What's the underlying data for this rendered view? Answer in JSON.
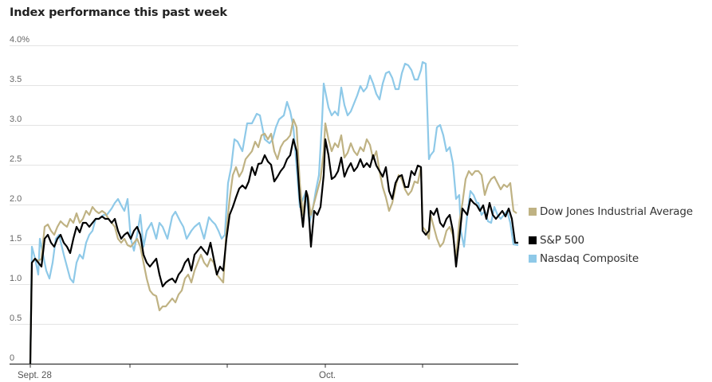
{
  "title": "Index performance this past week",
  "colors": {
    "dow": "#bfb283",
    "sp": "#000000",
    "nasdaq": "#8ec9e8",
    "grid": "#e3e3e3",
    "axis": "#333333"
  },
  "legend": [
    {
      "label": "Dow Jones Industrial Average",
      "color": "#bfb283"
    },
    {
      "label": "S&P 500",
      "color": "#000000"
    },
    {
      "label": "Nasdaq Composite",
      "color": "#8ec9e8"
    }
  ],
  "chart_data": {
    "type": "line",
    "title": "Index performance this past week",
    "xlabel": "",
    "ylabel": "",
    "ylim": [
      0,
      4.0
    ],
    "yticks": [
      "0",
      "0.5",
      "1.0",
      "1.5",
      "2.0",
      "2.5",
      "3.0",
      "3.5",
      "4.0%"
    ],
    "xticks": [
      {
        "pos": 0,
        "label": "Sept. 28"
      },
      {
        "pos": 125,
        "label": ""
      },
      {
        "pos": 247,
        "label": ""
      },
      {
        "pos": 370,
        "label": "Oct."
      },
      {
        "pos": 492,
        "label": ""
      }
    ],
    "x_range": [
      0,
      612
    ],
    "grid": true,
    "legend_position": "right",
    "series": [
      {
        "name": "Dow Jones Industrial Average",
        "x": [
          0,
          2,
          6,
          10,
          14,
          18,
          22,
          26,
          30,
          34,
          38,
          42,
          46,
          50,
          54,
          58,
          62,
          66,
          70,
          74,
          78,
          82,
          86,
          90,
          94,
          98,
          102,
          106,
          110,
          114,
          118,
          122,
          126,
          130,
          134,
          138,
          142,
          146,
          150,
          154,
          158,
          162,
          166,
          170,
          174,
          178,
          182,
          186,
          190,
          194,
          198,
          202,
          206,
          210,
          214,
          218,
          222,
          226,
          230,
          234,
          238,
          242,
          246,
          250,
          254,
          258,
          262,
          266,
          270,
          274,
          278,
          282,
          286,
          290,
          294,
          298,
          302,
          306,
          310,
          314,
          318,
          322,
          326,
          330,
          334,
          338,
          342,
          346,
          348,
          352,
          356,
          360,
          364,
          368,
          370,
          374,
          378,
          382,
          386,
          390,
          394,
          398,
          402,
          406,
          410,
          414,
          418,
          422,
          426,
          430,
          434,
          438,
          442,
          446,
          450,
          454,
          458,
          462,
          466,
          470,
          474,
          478,
          482,
          486,
          490,
          492,
          496,
          500,
          502,
          506,
          510,
          514,
          518,
          522,
          526,
          530,
          534,
          538,
          542,
          546,
          550,
          554,
          558,
          562,
          566,
          570,
          574,
          578,
          582,
          586,
          590,
          594,
          598,
          602,
          606,
          610
        ],
        "values": [
          0,
          1.27,
          1.32,
          1.29,
          1.32,
          1.72,
          1.75,
          1.67,
          1.62,
          1.72,
          1.79,
          1.75,
          1.72,
          1.82,
          1.77,
          1.89,
          1.77,
          1.82,
          1.92,
          1.87,
          1.97,
          1.92,
          1.89,
          1.92,
          1.89,
          1.82,
          1.77,
          1.72,
          1.57,
          1.52,
          1.57,
          1.49,
          1.47,
          1.52,
          1.57,
          1.47,
          1.27,
          1.07,
          0.92,
          0.87,
          0.85,
          0.67,
          0.72,
          0.72,
          0.77,
          0.82,
          0.77,
          0.87,
          0.92,
          1.07,
          1.12,
          1.02,
          1.17,
          1.27,
          1.37,
          1.27,
          1.22,
          1.32,
          1.27,
          1.12,
          1.07,
          1.02,
          1.67,
          2.07,
          2.37,
          2.47,
          2.35,
          2.42,
          2.57,
          2.62,
          2.67,
          2.79,
          2.72,
          2.87,
          2.89,
          2.82,
          2.89,
          2.67,
          2.57,
          2.72,
          2.79,
          2.82,
          2.87,
          3.07,
          2.97,
          2.27,
          1.87,
          2.17,
          2.12,
          1.87,
          2.02,
          2.17,
          2.32,
          2.67,
          3.02,
          2.82,
          2.67,
          2.77,
          2.72,
          2.87,
          2.59,
          2.65,
          2.77,
          2.67,
          2.62,
          2.72,
          2.67,
          2.82,
          2.75,
          2.57,
          2.67,
          2.42,
          2.22,
          2.09,
          1.92,
          2.02,
          2.22,
          2.37,
          2.32,
          2.19,
          2.12,
          2.17,
          2.29,
          2.27,
          2.47,
          1.72,
          1.67,
          1.57,
          1.87,
          1.72,
          1.57,
          1.47,
          1.52,
          1.67,
          1.72,
          1.62,
          1.32,
          1.77,
          2.02,
          2.32,
          2.42,
          2.37,
          2.42,
          2.42,
          2.37,
          2.12,
          2.25,
          2.32,
          2.35,
          2.27,
          2.19,
          2.25,
          2.22,
          2.27,
          1.92,
          1.89
        ],
        "color": "#bfb283"
      },
      {
        "name": "S&P 500",
        "x": [
          0,
          2,
          6,
          10,
          14,
          18,
          22,
          26,
          30,
          34,
          38,
          42,
          46,
          50,
          54,
          58,
          62,
          66,
          70,
          74,
          78,
          82,
          86,
          90,
          94,
          98,
          102,
          106,
          110,
          114,
          118,
          122,
          126,
          130,
          134,
          138,
          142,
          146,
          150,
          154,
          158,
          162,
          166,
          170,
          174,
          178,
          182,
          186,
          190,
          194,
          198,
          202,
          206,
          210,
          214,
          218,
          222,
          226,
          230,
          232,
          234,
          238,
          242,
          246,
          250,
          254,
          258,
          262,
          266,
          270,
          274,
          278,
          282,
          286,
          290,
          294,
          298,
          302,
          306,
          310,
          314,
          318,
          322,
          326,
          330,
          334,
          338,
          342,
          346,
          348,
          352,
          356,
          360,
          364,
          368,
          370,
          374,
          378,
          382,
          386,
          390,
          394,
          398,
          402,
          406,
          410,
          414,
          418,
          422,
          426,
          430,
          434,
          438,
          442,
          446,
          450,
          454,
          458,
          462,
          466,
          470,
          474,
          478,
          482,
          486,
          490,
          492,
          496,
          500,
          502,
          506,
          510,
          514,
          518,
          522,
          526,
          530,
          534,
          538,
          542,
          548,
          552,
          556,
          560,
          564,
          568,
          572,
          576,
          580,
          584,
          588,
          592,
          596,
          600,
          604,
          608,
          612
        ],
        "values": [
          0,
          1.27,
          1.32,
          1.27,
          1.22,
          1.57,
          1.62,
          1.52,
          1.47,
          1.57,
          1.62,
          1.52,
          1.47,
          1.39,
          1.57,
          1.72,
          1.65,
          1.77,
          1.77,
          1.72,
          1.77,
          1.82,
          1.82,
          1.85,
          1.82,
          1.82,
          1.77,
          1.82,
          1.67,
          1.57,
          1.62,
          1.65,
          1.57,
          1.67,
          1.72,
          1.62,
          1.37,
          1.27,
          1.22,
          1.27,
          1.32,
          1.12,
          0.97,
          1.02,
          1.05,
          1.07,
          1.02,
          1.12,
          1.17,
          1.27,
          1.32,
          1.17,
          1.37,
          1.42,
          1.47,
          1.42,
          1.37,
          1.52,
          1.32,
          1.22,
          1.12,
          1.22,
          1.17,
          1.57,
          1.87,
          1.97,
          2.09,
          2.2,
          2.24,
          2.2,
          2.29,
          2.47,
          2.37,
          2.51,
          2.52,
          2.62,
          2.54,
          2.5,
          2.29,
          2.35,
          2.42,
          2.47,
          2.57,
          2.62,
          2.82,
          2.67,
          2.07,
          1.72,
          2.17,
          2.09,
          1.47,
          1.92,
          1.87,
          1.97,
          2.37,
          2.82,
          2.62,
          2.32,
          2.35,
          2.42,
          2.59,
          2.35,
          2.45,
          2.52,
          2.42,
          2.47,
          2.57,
          2.47,
          2.52,
          2.47,
          2.62,
          2.49,
          2.42,
          2.35,
          2.47,
          2.17,
          2.07,
          2.27,
          2.35,
          2.37,
          2.22,
          2.22,
          2.42,
          2.37,
          2.49,
          2.47,
          1.67,
          1.62,
          1.67,
          1.92,
          1.87,
          1.95,
          1.77,
          1.72,
          1.82,
          1.87,
          1.67,
          1.22,
          1.57,
          1.95,
          1.87,
          2.07,
          2.02,
          1.99,
          1.92,
          1.99,
          1.82,
          2.02,
          1.87,
          1.82,
          1.87,
          1.92,
          1.85,
          1.95,
          1.82,
          1.52,
          1.52
        ],
        "color": "#000000"
      },
      {
        "name": "Nasdaq Composite",
        "x": [
          0,
          2,
          6,
          10,
          12,
          16,
          20,
          24,
          28,
          32,
          36,
          42,
          50,
          54,
          58,
          62,
          66,
          70,
          74,
          78,
          82,
          86,
          92,
          96,
          102,
          106,
          110,
          114,
          118,
          122,
          126,
          130,
          134,
          138,
          142,
          146,
          152,
          158,
          162,
          166,
          172,
          178,
          182,
          188,
          192,
          196,
          202,
          206,
          212,
          218,
          224,
          228,
          232,
          236,
          240,
          244,
          248,
          252,
          256,
          260,
          266,
          272,
          278,
          284,
          288,
          294,
          300,
          304,
          308,
          312,
          318,
          322,
          326,
          330,
          334,
          338,
          342,
          346,
          350,
          354,
          358,
          362,
          366,
          368,
          370,
          374,
          378,
          382,
          386,
          390,
          394,
          398,
          402,
          406,
          410,
          414,
          418,
          422,
          426,
          430,
          434,
          438,
          442,
          446,
          450,
          454,
          458,
          462,
          466,
          470,
          474,
          478,
          482,
          486,
          490,
          492,
          496,
          500,
          502,
          506,
          510,
          514,
          518,
          522,
          526,
          530,
          534,
          538,
          540,
          544,
          548,
          552,
          556,
          560,
          562,
          566,
          570,
          574,
          578,
          582,
          586,
          590,
          594,
          598,
          602,
          606,
          612
        ],
        "values": [
          0,
          1.47,
          1.32,
          1.12,
          1.57,
          1.37,
          1.17,
          1.07,
          1.27,
          1.57,
          1.62,
          1.37,
          1.07,
          1.02,
          1.27,
          1.37,
          1.32,
          1.52,
          1.62,
          1.67,
          1.82,
          1.82,
          1.87,
          1.87,
          1.95,
          2.02,
          2.07,
          1.99,
          1.92,
          2.07,
          1.57,
          1.42,
          1.62,
          1.87,
          1.47,
          1.67,
          1.77,
          1.57,
          1.77,
          1.72,
          1.57,
          1.85,
          1.91,
          1.79,
          1.72,
          1.57,
          1.67,
          1.72,
          1.77,
          1.57,
          1.84,
          1.79,
          1.75,
          1.67,
          1.57,
          1.62,
          2.27,
          2.47,
          2.82,
          2.79,
          2.67,
          3.02,
          3.02,
          3.14,
          3.12,
          2.82,
          2.77,
          2.82,
          2.97,
          3.07,
          3.12,
          3.29,
          3.17,
          2.97,
          2.47,
          1.97,
          2.07,
          2.17,
          1.77,
          1.92,
          2.17,
          2.37,
          3.07,
          3.52,
          3.42,
          3.22,
          3.12,
          3.17,
          3.12,
          3.47,
          3.25,
          3.12,
          3.17,
          3.27,
          3.37,
          3.49,
          3.42,
          3.47,
          3.62,
          3.52,
          3.39,
          3.32,
          3.52,
          3.65,
          3.67,
          3.59,
          3.45,
          3.45,
          3.65,
          3.77,
          3.75,
          3.69,
          3.57,
          3.57,
          3.69,
          3.79,
          3.77,
          2.57,
          2.62,
          2.67,
          2.97,
          3.0,
          2.87,
          2.67,
          2.72,
          2.52,
          2.07,
          2.12,
          1.67,
          1.47,
          1.87,
          2.17,
          2.12,
          2.02,
          2.02,
          1.87,
          1.92,
          1.79,
          1.77,
          1.97,
          1.87,
          1.82,
          1.87,
          1.92,
          1.77,
          1.5,
          1.49
        ],
        "color": "#8ec9e8"
      }
    ]
  }
}
